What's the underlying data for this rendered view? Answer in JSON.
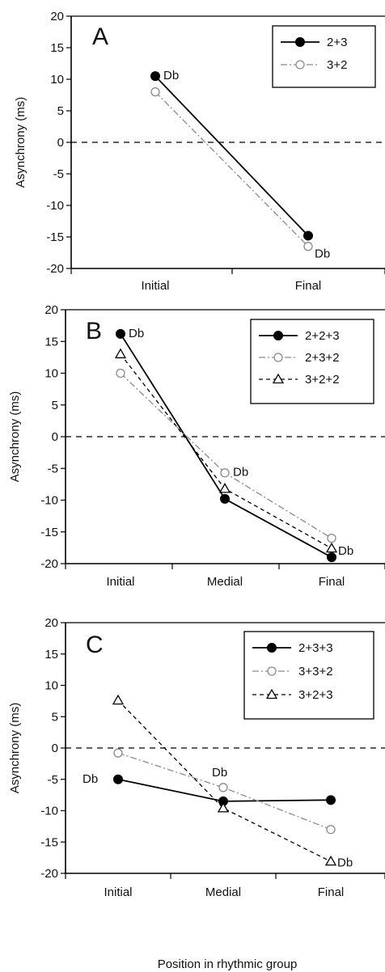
{
  "figure": {
    "xlabel": "Position in rhythmic group"
  },
  "chart_data": [
    {
      "type": "line",
      "panel": "A",
      "ylabel": "Asynchrony (ms)",
      "ylim": [
        -20,
        20
      ],
      "yticks": [
        20,
        15,
        10,
        5,
        0,
        -5,
        -10,
        -15,
        -20
      ],
      "categories": [
        "Initial",
        "Final"
      ],
      "reference_line": 0,
      "legend_position": "top-right",
      "series": [
        {
          "name": "2+3",
          "marker": "filled-circle",
          "line": "solid",
          "color": "#000000",
          "values": [
            10.5,
            -14.8
          ]
        },
        {
          "name": "3+2",
          "marker": "open-circle",
          "line": "dash-dot",
          "color": "#8a8a8a",
          "values": [
            8.0,
            -16.5
          ]
        }
      ],
      "annotations": [
        {
          "text": "Db",
          "series": 0,
          "point": 0
        },
        {
          "text": "Db",
          "series": 1,
          "point": 1
        }
      ]
    },
    {
      "type": "line",
      "panel": "B",
      "ylabel": "Asynchrony (ms)",
      "ylim": [
        -20,
        20
      ],
      "yticks": [
        20,
        15,
        10,
        5,
        0,
        -5,
        -10,
        -15,
        -20
      ],
      "categories": [
        "Initial",
        "Medial",
        "Final"
      ],
      "reference_line": 0,
      "legend_position": "top-right",
      "series": [
        {
          "name": "2+2+3",
          "marker": "filled-circle",
          "line": "solid",
          "color": "#000000",
          "values": [
            16.2,
            -9.8,
            -19.0
          ]
        },
        {
          "name": "2+3+2",
          "marker": "open-circle",
          "line": "dash-dot",
          "color": "#8a8a8a",
          "values": [
            10.0,
            -5.7,
            -16.0
          ]
        },
        {
          "name": "3+2+2",
          "marker": "open-triangle",
          "line": "dashed",
          "color": "#000000",
          "values": [
            13.0,
            -8.2,
            -17.6
          ]
        }
      ],
      "annotations": [
        {
          "text": "Db",
          "series": 0,
          "point": 0
        },
        {
          "text": "Db",
          "series": 1,
          "point": 1
        },
        {
          "text": "Db",
          "series": 2,
          "point": 2
        }
      ]
    },
    {
      "type": "line",
      "panel": "C",
      "ylabel": "Asynchrony (ms)",
      "ylim": [
        -20,
        20
      ],
      "yticks": [
        20,
        15,
        10,
        5,
        0,
        -5,
        -10,
        -15,
        -20
      ],
      "categories": [
        "Initial",
        "Medial",
        "Final"
      ],
      "reference_line": 0,
      "legend_position": "top-right",
      "series": [
        {
          "name": "2+3+3",
          "marker": "filled-circle",
          "line": "solid",
          "color": "#000000",
          "values": [
            -5.0,
            -8.5,
            -8.3
          ]
        },
        {
          "name": "3+3+2",
          "marker": "open-circle",
          "line": "dash-dot",
          "color": "#8a8a8a",
          "values": [
            -0.8,
            -6.3,
            -13.0
          ]
        },
        {
          "name": "3+2+3",
          "marker": "open-triangle",
          "line": "dashed",
          "color": "#000000",
          "values": [
            7.6,
            -9.6,
            -18.1
          ]
        }
      ],
      "annotations": [
        {
          "text": "Db",
          "series": 0,
          "point": 0
        },
        {
          "text": "Db",
          "series": 1,
          "point": 1
        },
        {
          "text": "Db",
          "series": 2,
          "point": 2
        }
      ]
    }
  ]
}
